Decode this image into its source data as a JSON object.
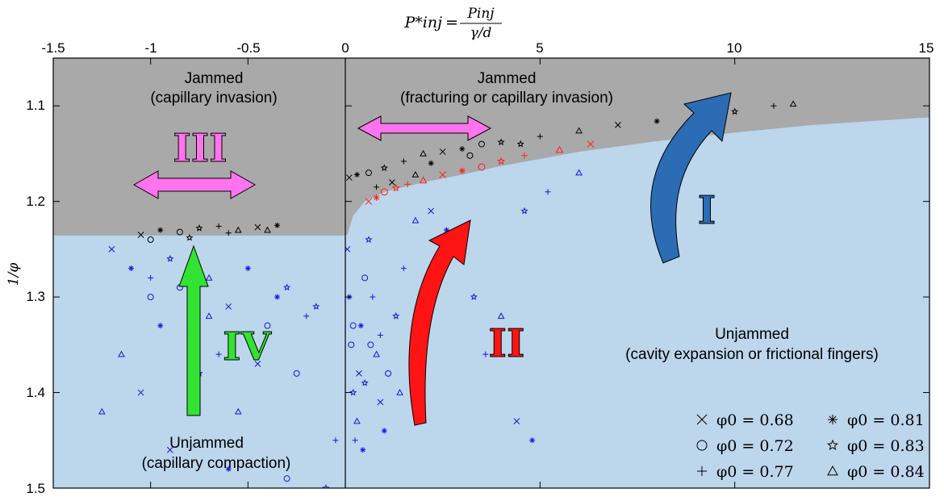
{
  "chart_data": {
    "type": "scatter",
    "x_axis": {
      "label_lhs": "P*inj",
      "label_fraction_numerator": "Pinj",
      "label_fraction_denominator": "γ/d",
      "position": "top",
      "left_panel": {
        "range": [
          -1.5,
          0
        ],
        "ticks": [
          "-1.5",
          "-1",
          "-0.5",
          "0"
        ]
      },
      "right_panel": {
        "range": [
          0,
          15
        ],
        "ticks": [
          "5",
          "10",
          "15"
        ]
      }
    },
    "y_axis": {
      "label": "1/φ",
      "range": [
        1.05,
        1.5
      ],
      "reversed": true,
      "ticks": [
        "1.1",
        "1.2",
        "1.3",
        "1.4",
        "1.5"
      ]
    },
    "regions": [
      {
        "name": "Jammed",
        "detail": "(capillary invasion)",
        "panel": "left"
      },
      {
        "name": "Jammed",
        "detail": "(fracturing or capillary invasion)",
        "panel": "right"
      },
      {
        "name": "Unjammed",
        "detail": "(capillary compaction)",
        "panel": "left"
      },
      {
        "name": "Unjammed",
        "detail": "(cavity expansion or frictional fingers)",
        "panel": "right"
      }
    ],
    "jamming_boundary": {
      "left_panel_y": 1.235,
      "right_panel_curve": [
        [
          0.05,
          1.235
        ],
        [
          0.2,
          1.215
        ],
        [
          0.5,
          1.2
        ],
        [
          1,
          1.19
        ],
        [
          2,
          1.18
        ],
        [
          3,
          1.172
        ],
        [
          4,
          1.163
        ],
        [
          6,
          1.148
        ],
        [
          8,
          1.137
        ],
        [
          10,
          1.128
        ],
        [
          12,
          1.12
        ],
        [
          15,
          1.112
        ]
      ]
    },
    "regimes": [
      {
        "label": "I",
        "color": "#2b6cb5",
        "type": "curved arrow",
        "from": [
          9.0,
          1.28
        ],
        "to": [
          10.5,
          1.08
        ]
      },
      {
        "label": "II",
        "color": "#ff1414",
        "type": "curved arrow",
        "from": [
          2.5,
          1.465
        ],
        "to": [
          4.3,
          1.215
        ]
      },
      {
        "label": "III",
        "color": "#ff74ee",
        "type": "double arrow",
        "from": [
          -1.15,
          1.2
        ],
        "to": [
          -0.35,
          1.2
        ]
      },
      {
        "label": "IV",
        "color": "#33e333",
        "type": "arrow",
        "from": [
          -0.78,
          1.42
        ],
        "to": [
          -0.78,
          1.24
        ]
      }
    ],
    "extra_double_arrow": {
      "panel": "right",
      "from": [
        0.3,
        1.14
      ],
      "to": [
        4.0,
        1.14
      ],
      "color": "#ff74ee"
    },
    "legend": {
      "position": "bottom-right",
      "entries": [
        {
          "marker": "cross",
          "label": "φ0 = 0.68"
        },
        {
          "marker": "asterisk",
          "label": "φ0 = 0.81"
        },
        {
          "marker": "circle",
          "label": "φ0 = 0.72"
        },
        {
          "marker": "star",
          "label": "φ0 = 0.83"
        },
        {
          "marker": "plus",
          "label": "φ0 = 0.77"
        },
        {
          "marker": "triangle",
          "label": "φ0 = 0.84"
        }
      ]
    },
    "series_colors": {
      "jammed": "#000000",
      "unjammed": "#1414e6",
      "transition": "#ff1f1f"
    },
    "black_cluster_left": [
      [
        -1.05,
        1.235
      ],
      [
        -0.95,
        1.23
      ],
      [
        -0.85,
        1.232
      ],
      [
        -0.75,
        1.228
      ],
      [
        -0.65,
        1.226
      ],
      [
        -0.55,
        1.23
      ],
      [
        -0.45,
        1.227
      ],
      [
        -0.35,
        1.225
      ],
      [
        -1.0,
        1.24
      ],
      [
        -0.8,
        1.238
      ],
      [
        -0.6,
        1.233
      ],
      [
        -0.4,
        1.23
      ]
    ],
    "black_cluster_right": [
      [
        0.1,
        1.175
      ],
      [
        0.3,
        1.172
      ],
      [
        0.6,
        1.17
      ],
      [
        1.0,
        1.165
      ],
      [
        1.5,
        1.158
      ],
      [
        2.0,
        1.15
      ],
      [
        2.5,
        1.148
      ],
      [
        3.0,
        1.145
      ],
      [
        3.5,
        1.14
      ],
      [
        4.0,
        1.138
      ],
      [
        5.0,
        1.132
      ],
      [
        6.0,
        1.126
      ],
      [
        7.0,
        1.12
      ],
      [
        8.0,
        1.116
      ],
      [
        9.0,
        1.112
      ],
      [
        10.0,
        1.106
      ],
      [
        11.0,
        1.1
      ],
      [
        11.5,
        1.098
      ],
      [
        1.2,
        1.18
      ],
      [
        2.2,
        1.16
      ],
      [
        3.2,
        1.152
      ],
      [
        4.5,
        1.14
      ],
      [
        0.8,
        1.185
      ],
      [
        1.8,
        1.172
      ]
    ],
    "red_points": [
      [
        0.6,
        1.2
      ],
      [
        0.8,
        1.196
      ],
      [
        1.0,
        1.19
      ],
      [
        1.3,
        1.186
      ],
      [
        1.6,
        1.182
      ],
      [
        2.0,
        1.178
      ],
      [
        2.5,
        1.172
      ],
      [
        3.0,
        1.168
      ],
      [
        3.5,
        1.164
      ],
      [
        4.0,
        1.158
      ],
      [
        4.6,
        1.152
      ],
      [
        5.5,
        1.146
      ],
      [
        6.3,
        1.14
      ]
    ],
    "blue_left": [
      [
        -1.2,
        1.25
      ],
      [
        -1.1,
        1.27
      ],
      [
        -1.0,
        1.3
      ],
      [
        -0.9,
        1.26
      ],
      [
        -0.8,
        1.34
      ],
      [
        -0.7,
        1.28
      ],
      [
        -0.6,
        1.31
      ],
      [
        -0.5,
        1.27
      ],
      [
        -0.4,
        1.33
      ],
      [
        -0.3,
        1.29
      ],
      [
        -0.2,
        1.32
      ],
      [
        -1.15,
        1.36
      ],
      [
        -1.05,
        1.4
      ],
      [
        -0.95,
        1.33
      ],
      [
        -0.85,
        1.29
      ],
      [
        -0.75,
        1.38
      ],
      [
        -0.65,
        1.36
      ],
      [
        -0.55,
        1.42
      ],
      [
        -0.45,
        1.37
      ],
      [
        -0.35,
        1.3
      ],
      [
        -0.25,
        1.38
      ],
      [
        -0.15,
        1.31
      ],
      [
        -0.05,
        1.45
      ],
      [
        -1.25,
        1.42
      ],
      [
        -0.9,
        1.46
      ],
      [
        -0.6,
        1.48
      ],
      [
        -0.3,
        1.49
      ],
      [
        -0.1,
        1.5
      ],
      [
        -1.0,
        1.28
      ],
      [
        -0.7,
        1.32
      ]
    ],
    "blue_right": [
      [
        0.05,
        1.25
      ],
      [
        0.1,
        1.3
      ],
      [
        0.15,
        1.35
      ],
      [
        0.2,
        1.4
      ],
      [
        0.25,
        1.45
      ],
      [
        0.3,
        1.43
      ],
      [
        0.35,
        1.38
      ],
      [
        0.4,
        1.33
      ],
      [
        0.5,
        1.28
      ],
      [
        0.6,
        1.24
      ],
      [
        0.7,
        1.3
      ],
      [
        0.8,
        1.36
      ],
      [
        0.9,
        1.41
      ],
      [
        1.0,
        1.44
      ],
      [
        1.1,
        1.38
      ],
      [
        1.3,
        1.32
      ],
      [
        1.5,
        1.27
      ],
      [
        1.8,
        1.22
      ],
      [
        2.2,
        1.21
      ],
      [
        2.6,
        1.23
      ],
      [
        3.0,
        1.25
      ],
      [
        3.3,
        1.3
      ],
      [
        3.6,
        1.36
      ],
      [
        4.0,
        1.32
      ],
      [
        4.4,
        1.43
      ],
      [
        4.8,
        1.45
      ],
      [
        0.2,
        1.33
      ],
      [
        0.5,
        1.39
      ],
      [
        0.9,
        1.34
      ],
      [
        1.4,
        1.4
      ],
      [
        2.0,
        1.3
      ],
      [
        0.45,
        1.46
      ],
      [
        0.65,
        1.35
      ],
      [
        4.6,
        1.21
      ],
      [
        5.2,
        1.19
      ],
      [
        6.0,
        1.17
      ]
    ]
  }
}
